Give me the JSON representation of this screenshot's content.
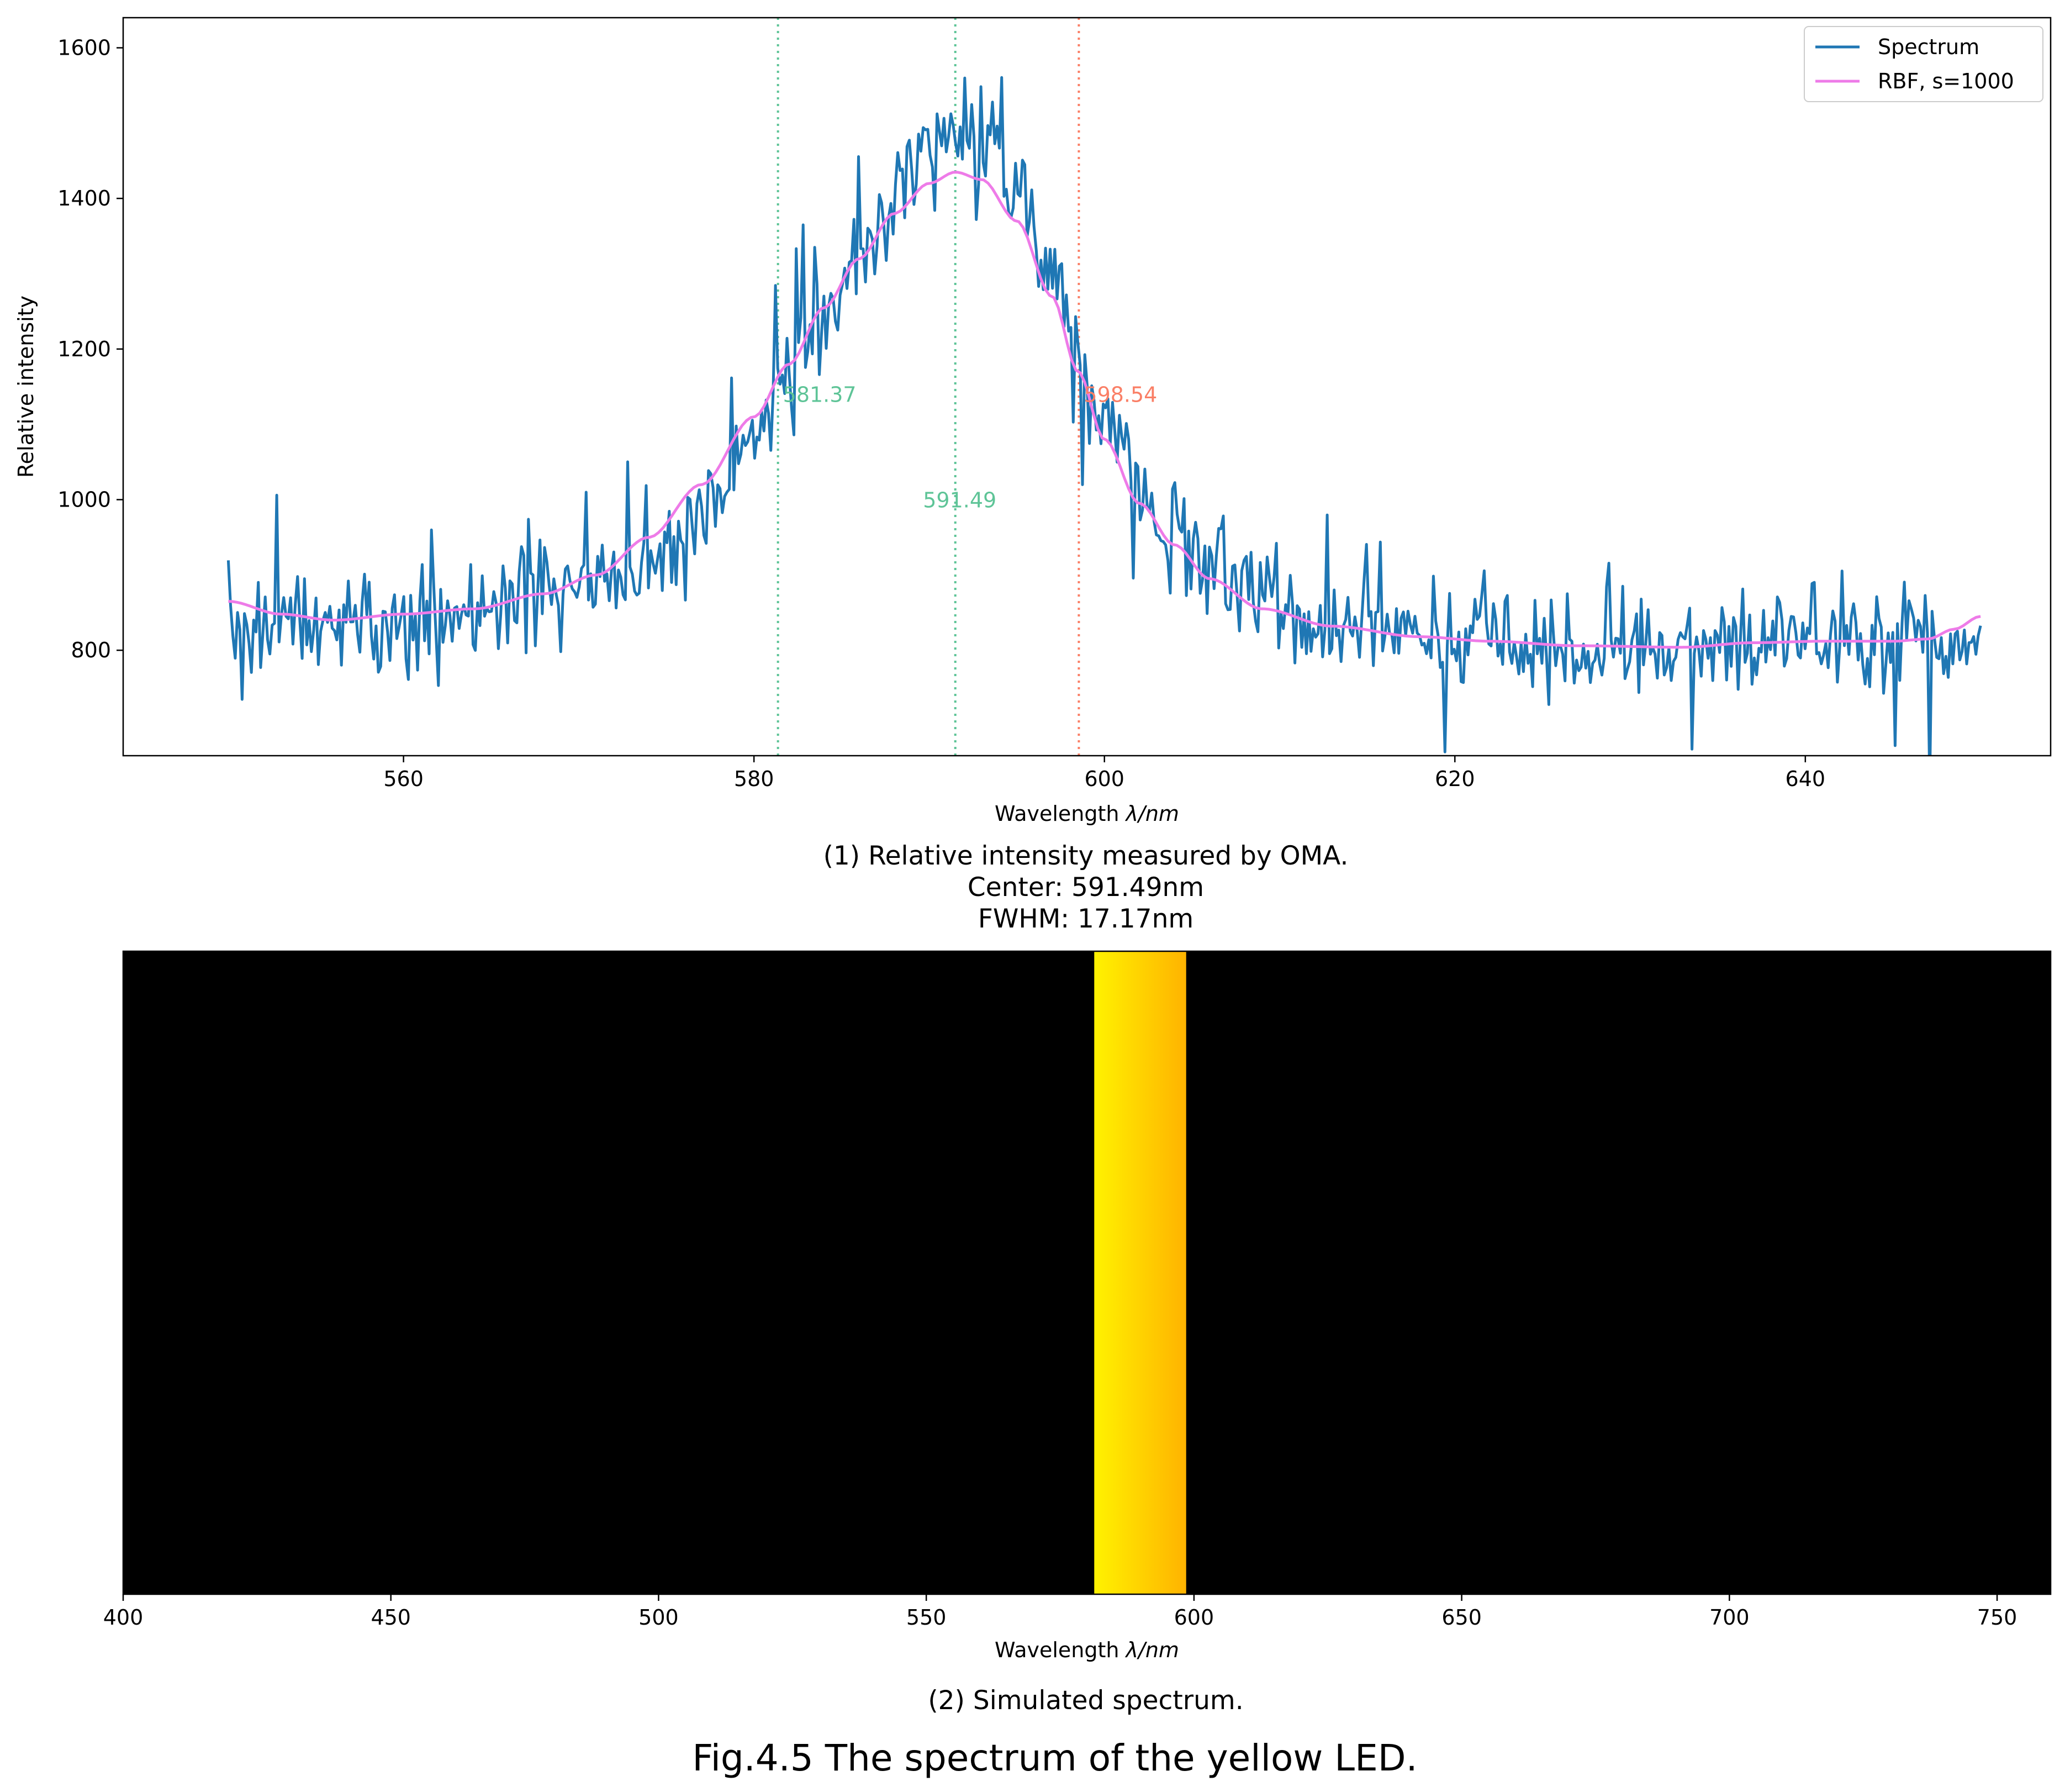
{
  "figure_title": "Fig.4.5 The spectrum of the yellow LED.",
  "chart_data": [
    {
      "type": "line",
      "caption_lines": [
        "(1) Relative intensity measured by OMA.",
        "Center: 591.49nm",
        "FWHM: 17.17nm"
      ],
      "xlabel_prefix": "Wavelength ",
      "xlabel_math": "λ/nm",
      "ylabel": "Relative intensity",
      "xlim": [
        544,
        654
      ],
      "ylim": [
        660,
        1640
      ],
      "xticks": [
        560,
        580,
        600,
        620,
        640
      ],
      "yticks": [
        800,
        1000,
        1200,
        1400,
        1600
      ],
      "legend": {
        "location": "top-right",
        "entries": [
          "Spectrum",
          "RBF, s=1000"
        ]
      },
      "series": [
        {
          "name": "Spectrum",
          "color": "#1f77b4",
          "x_range": [
            550,
            650
          ],
          "anchors_x": [
            550,
            555,
            560,
            565,
            570,
            575,
            578,
            580,
            582,
            584,
            586,
            588,
            590,
            591.5,
            593,
            595,
            597,
            599,
            601,
            603,
            605,
            608,
            612,
            616,
            620,
            625,
            630,
            635,
            640,
            645,
            650
          ],
          "anchors_y": [
            840,
            830,
            840,
            850,
            880,
            930,
            1000,
            1080,
            1160,
            1240,
            1310,
            1400,
            1480,
            1500,
            1480,
            1420,
            1300,
            1150,
            1050,
            980,
            930,
            880,
            840,
            820,
            810,
            800,
            800,
            805,
            810,
            815,
            810
          ],
          "noise_amplitude": 55,
          "samples": 760
        },
        {
          "name": "RBF, s=1000",
          "color": "#ee7be8",
          "x": [
            550,
            553,
            556,
            560,
            564,
            568,
            571,
            574,
            577,
            580,
            582,
            584,
            586,
            588,
            590,
            591.5,
            593,
            595,
            597,
            598.5,
            600,
            602,
            604,
            606,
            609,
            613,
            618,
            622,
            627,
            633,
            637,
            641,
            645,
            647,
            648.5,
            650
          ],
          "y": [
            865,
            848,
            840,
            848,
            855,
            875,
            900,
            950,
            1020,
            1110,
            1180,
            1255,
            1320,
            1380,
            1420,
            1435,
            1425,
            1370,
            1270,
            1170,
            1080,
            995,
            940,
            895,
            855,
            832,
            818,
            812,
            806,
            804,
            810,
            812,
            812,
            815,
            828,
            845
          ]
        }
      ],
      "vlines": [
        {
          "x": 581.37,
          "label": "581.37",
          "color": "#5ec497",
          "label_y": 1140
        },
        {
          "x": 591.49,
          "label": "591.49",
          "color": "#5ec497",
          "label_y": 1000
        },
        {
          "x": 598.54,
          "label": "598.54",
          "color": "#fa7f66",
          "label_y": 1140
        }
      ]
    },
    {
      "type": "heatmap",
      "caption": "(2) Simulated spectrum.",
      "xlabel_prefix": "Wavelength ",
      "xlabel_math": "λ/nm",
      "xlim": [
        400,
        760
      ],
      "xticks": [
        400,
        450,
        500,
        550,
        600,
        650,
        700,
        750
      ],
      "background_color": "#000000",
      "band": {
        "x_start": 581.37,
        "x_end": 598.54,
        "color_start": "#fff200",
        "color_end": "#ffb300"
      }
    }
  ]
}
